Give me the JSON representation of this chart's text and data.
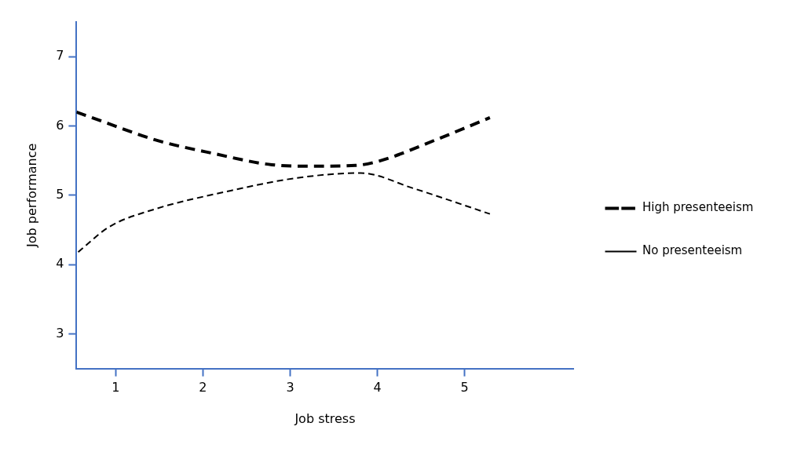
{
  "chart_data": {
    "type": "line",
    "xlabel": "Job stress",
    "ylabel": "Job performance",
    "xlim": [
      0.55,
      6.25
    ],
    "xticks": [
      1,
      2,
      3,
      4,
      5
    ],
    "ylim": [
      2.5,
      7.5
    ],
    "yticks": [
      3,
      4,
      5,
      6,
      7
    ],
    "grid": false,
    "legend": "right",
    "marker": "none",
    "series": [
      {
        "name": "High presenteeism",
        "color": "#000000",
        "line_style": "dashed",
        "x": [
          0.55,
          0.86,
          1.45,
          2.13,
          2.79,
          3.25,
          3.75,
          4.04,
          4.67,
          5.29
        ],
        "values": [
          6.2,
          6.06,
          5.8,
          5.6,
          5.44,
          5.42,
          5.43,
          5.5,
          5.8,
          6.12
        ]
      },
      {
        "name": "No presenteeism",
        "color": "#000000",
        "line_style": "dashed",
        "x": [
          0.57,
          0.92,
          1.45,
          2.26,
          3.08,
          3.81,
          4.41,
          5.29
        ],
        "values": [
          4.18,
          4.54,
          4.8,
          5.05,
          5.25,
          5.32,
          5.1,
          4.73
        ]
      }
    ]
  }
}
